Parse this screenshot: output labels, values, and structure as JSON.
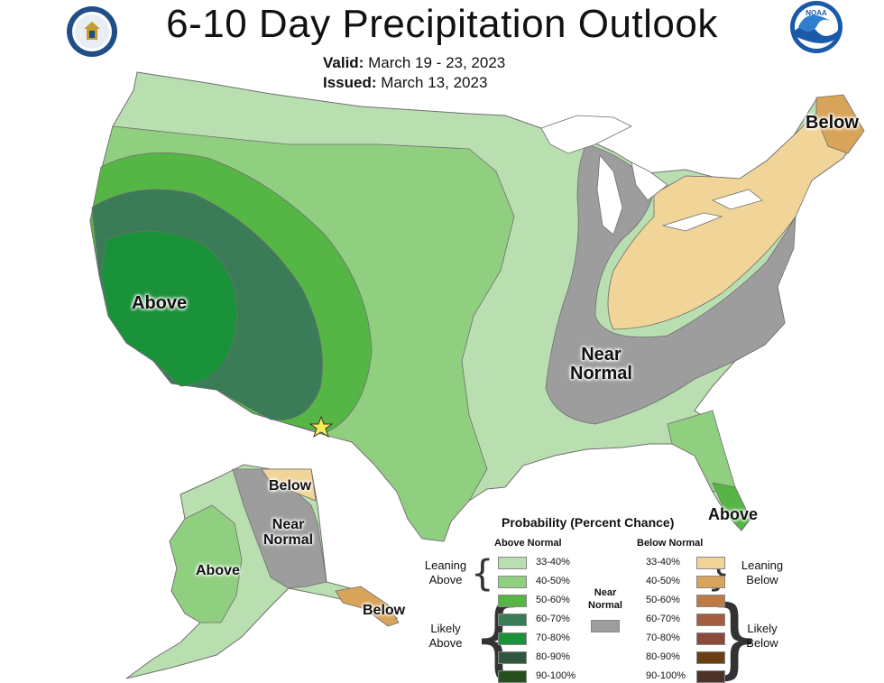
{
  "header": {
    "title": "6-10 Day Precipitation Outlook",
    "valid_label": "Valid:",
    "valid_value": "March 19 - 23, 2023",
    "issued_label": "Issued:",
    "issued_value": "March 13, 2023",
    "noaa_logo_text": "NOAA"
  },
  "map_labels": {
    "west_above": "Above",
    "near_normal_line1": "Near",
    "near_normal_line2": "Normal",
    "northeast_below": "Below",
    "florida_above": "Above",
    "alaska_below_north": "Below",
    "alaska_near_line1": "Near",
    "alaska_near_line2": "Normal",
    "alaska_above": "Above",
    "alaska_below_southeast": "Below"
  },
  "legend": {
    "title": "Probability (Percent Chance)",
    "above_header": "Above Normal",
    "below_header": "Below Normal",
    "leaning_above_line1": "Leaning",
    "leaning_above_line2": "Above",
    "likely_above_line1": "Likely",
    "likely_above_line2": "Above",
    "leaning_below_line1": "Leaning",
    "leaning_below_line2": "Below",
    "likely_below_line1": "Likely",
    "likely_below_line2": "Below",
    "near_normal_line1": "Near",
    "near_normal_line2": "Normal",
    "near_normal_color": "#9d9d9d",
    "above_items": [
      {
        "label": "33-40%",
        "color": "#b9dfb0"
      },
      {
        "label": "40-50%",
        "color": "#91cf80"
      },
      {
        "label": "50-60%",
        "color": "#55b545"
      },
      {
        "label": "60-70%",
        "color": "#3a7b58"
      },
      {
        "label": "70-80%",
        "color": "#19923a"
      },
      {
        "label": "80-90%",
        "color": "#2f5840"
      },
      {
        "label": "90-100%",
        "color": "#254f1d"
      }
    ],
    "below_items": [
      {
        "label": "33-40%",
        "color": "#f1d497"
      },
      {
        "label": "40-50%",
        "color": "#d8a45a"
      },
      {
        "label": "50-60%",
        "color": "#bd7a43"
      },
      {
        "label": "60-70%",
        "color": "#a45d3e"
      },
      {
        "label": "70-80%",
        "color": "#8c4a3c"
      },
      {
        "label": "80-90%",
        "color": "#6a3f11"
      },
      {
        "label": "90-100%",
        "color": "#4b3329"
      }
    ]
  },
  "colors": {
    "lean_above": "#b9dfb0",
    "above_40_50": "#91cf80",
    "above_50_60": "#55b545",
    "above_60_70": "#3a7b58",
    "above_70_80": "#19923a",
    "near_normal": "#9d9d9d",
    "lean_below": "#f1d497",
    "below_40_50": "#d8a45a",
    "water": "#ffffff",
    "boundary": "#6f6f6f"
  }
}
